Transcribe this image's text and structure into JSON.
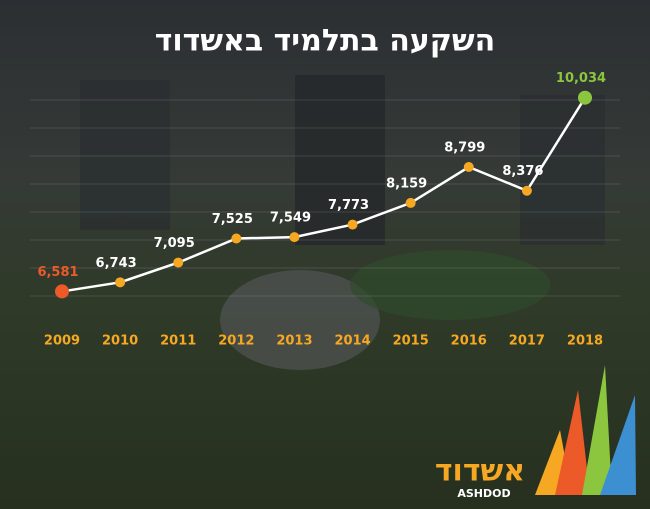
{
  "chart_data": {
    "type": "line",
    "title": "השקעה בתלמיד באשדוד",
    "categories": [
      "2009",
      "2010",
      "2011",
      "2012",
      "2013",
      "2014",
      "2015",
      "2016",
      "2017",
      "2018"
    ],
    "series": [
      {
        "color": "#ffffff",
        "values": [
          6581,
          6743,
          7095,
          7525,
          7549,
          7773,
          8159,
          8799,
          8376,
          10034
        ],
        "value_labels": [
          "6,581",
          "6,743",
          "7,095",
          "7,525",
          "7,549",
          "7,773",
          "8,159",
          "8,799",
          "8,376",
          "10,034"
        ]
      }
    ],
    "ylim": [
      6250,
      10350
    ],
    "marker_color": "#f7a823",
    "first_point_color": "#ec5a2a",
    "last_point_color": "#8cc63f",
    "label_color": "#ffffff",
    "category_color": "#f7a823"
  },
  "logo": {
    "hebrew": "אשדוד",
    "latin": "ASHDOD"
  }
}
